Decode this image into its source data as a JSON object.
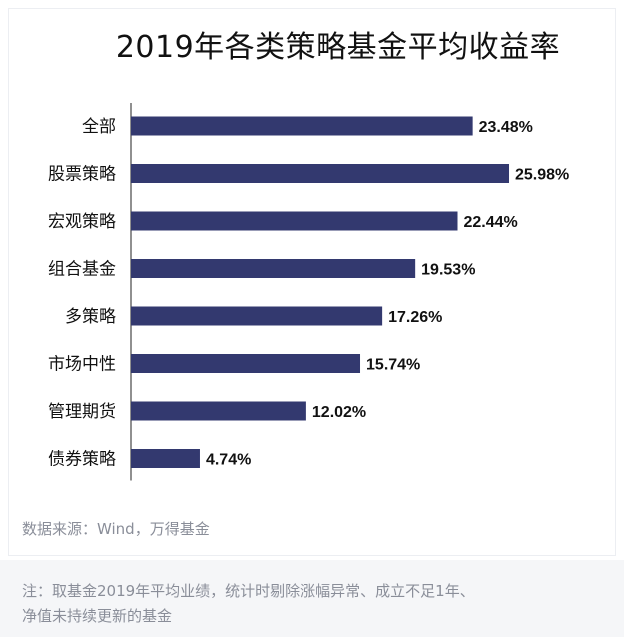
{
  "title": "2019年各类策略基金平均收益率",
  "source": "数据来源：Wind，万得基金",
  "note": {
    "line1": "注：取基金2019年平均业绩，统计时剔除涨幅异常、成立不足1年、",
    "line2": "净值未持续更新的基金"
  },
  "colors": {
    "bar": "#33396f",
    "axis": "#222222",
    "label": "#111111"
  },
  "chart_data": {
    "type": "bar",
    "orientation": "horizontal",
    "title": "2019年各类策略基金平均收益率",
    "categories": [
      "全部",
      "股票策略",
      "宏观策略",
      "组合基金",
      "多策略",
      "市场中性",
      "管理期货",
      "债券策略"
    ],
    "values": [
      23.48,
      25.98,
      22.44,
      19.53,
      17.26,
      15.74,
      12.02,
      4.74
    ],
    "data_labels": [
      "23.48%",
      "25.98%",
      "22.44%",
      "19.53%",
      "17.26%",
      "15.74%",
      "12.02%",
      "4.74%"
    ],
    "xlabel": "",
    "ylabel": "",
    "value_axis_range": [
      0,
      27
    ],
    "grid": false,
    "legend": "none"
  }
}
